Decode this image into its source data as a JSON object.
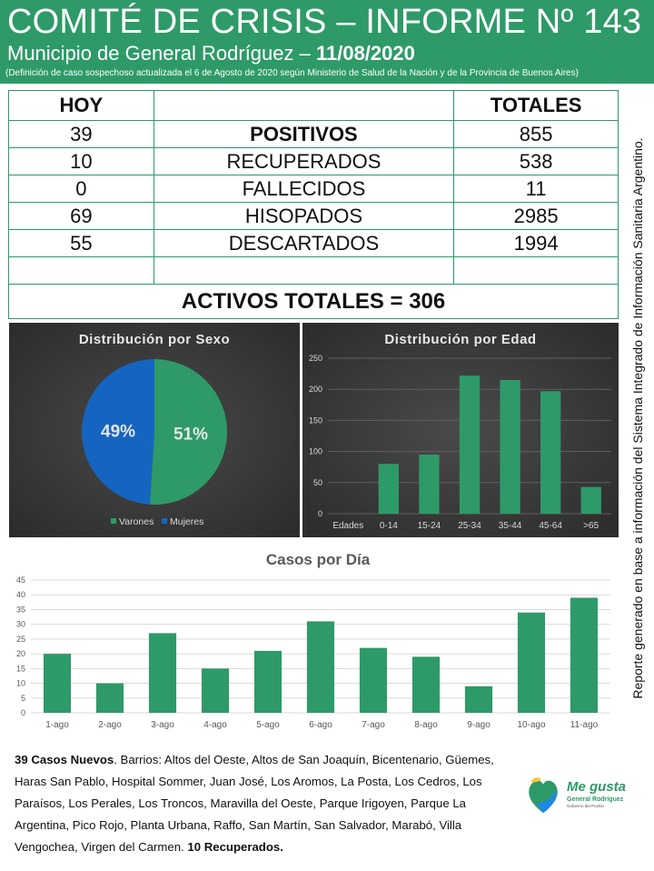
{
  "header": {
    "title": "COMITÉ DE CRISIS – INFORME Nº 143",
    "subtitle_prefix": "Municipio de General Rodríguez – ",
    "date": "11/08/2020",
    "note": "(Definición de caso sospechoso actualizada el 6 de Agosto de 2020 según Ministerio de Salud de la Nación y de la Provincia de Buenos Aires)"
  },
  "stats": {
    "col_today": "HOY",
    "col_total": "TOTALES",
    "rows": [
      {
        "today": "39",
        "label": "POSITIVOS",
        "total": "855"
      },
      {
        "today": "10",
        "label": "RECUPERADOS",
        "total": "538"
      },
      {
        "today": "0",
        "label": "FALLECIDOS",
        "total": "11"
      },
      {
        "today": "69",
        "label": "HISOPADOS",
        "total": "2985"
      },
      {
        "today": "55",
        "label": "DESCARTADOS",
        "total": "1994"
      }
    ],
    "activos": "ACTIVOS TOTALES = 306"
  },
  "colors": {
    "green": "#2e9a68",
    "blue": "#1565c0",
    "orange": "#f0942a"
  },
  "chart_data": [
    {
      "type": "pie",
      "title": "Distribución por Sexo",
      "labels": [
        "Varones",
        "Mujeres"
      ],
      "values": [
        51,
        49
      ],
      "value_labels": [
        "51%",
        "49%"
      ],
      "colors": [
        "#2e9a68",
        "#1565c0"
      ],
      "legend": "bottom"
    },
    {
      "type": "bar",
      "title": "Distribución por Edad",
      "first_tick_label": "Edades",
      "categories": [
        "0-14",
        "15-24",
        "25-34",
        "35-44",
        "45-64",
        ">65"
      ],
      "values": [
        80,
        95,
        222,
        215,
        197,
        43
      ],
      "ylim": [
        0,
        250
      ],
      "yticks": [
        0,
        50,
        100,
        150,
        200,
        250
      ],
      "grid": true
    },
    {
      "type": "bar",
      "title": "Casos por Día",
      "categories": [
        "1-ago",
        "2-ago",
        "3-ago",
        "4-ago",
        "5-ago",
        "6-ago",
        "7-ago",
        "8-ago",
        "9-ago",
        "10-ago",
        "11-ago"
      ],
      "values": [
        20,
        10,
        27,
        15,
        21,
        31,
        22,
        19,
        9,
        34,
        39
      ],
      "ylim": [
        0,
        45
      ],
      "yticks": [
        0,
        5,
        10,
        15,
        20,
        25,
        30,
        35,
        40,
        45
      ],
      "grid": true
    }
  ],
  "side_note": "Reporte generado en base a información del Sistema Integrado de Información Sanitaria Argentino.",
  "footer": {
    "new_cases": "39 Casos Nuevos",
    "barrios": ". Barrios: Altos del Oeste, Altos de San Joaquín, Bicentenario, Güemes, Haras San Pablo, Hospital Sommer, Juan José, Los Aromos, La Posta, Los Cedros, Los Paraísos, Los Perales, Los Troncos, Maravilla del Oeste, Parque Irigoyen, Parque La Argentina, Pico Rojo, Planta Urbana, Raffo, San Martín, San Salvador, Marabó, Villa Vengochea, Virgen del Carmen. ",
    "recovered": "10 Recuperados."
  },
  "logo": {
    "line1": "Me gusta",
    "line2": "General Rodríguez",
    "line3": "Gobierno del Pueblo"
  }
}
